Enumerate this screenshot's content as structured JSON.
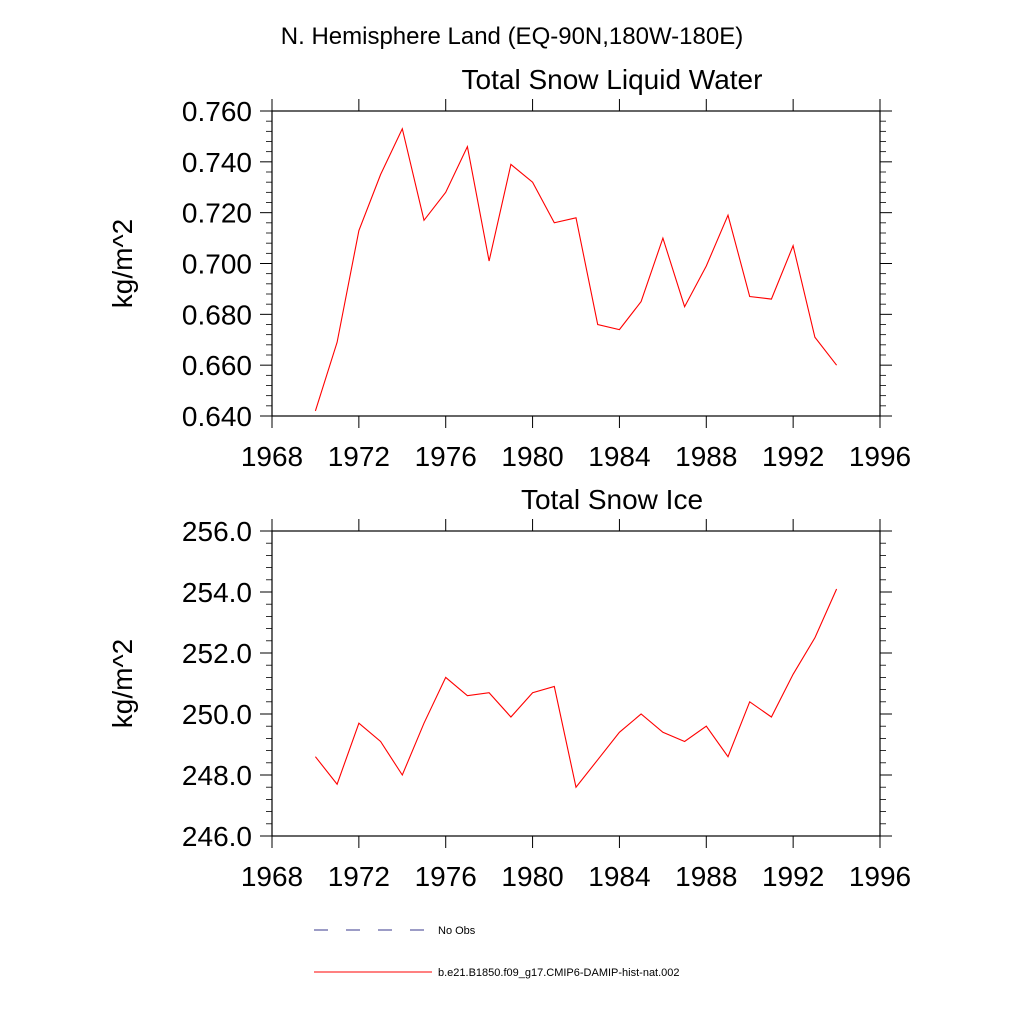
{
  "figure": {
    "title": "N. Hemisphere Land (EQ-90N,180W-180E)"
  },
  "chart_data": [
    {
      "type": "line",
      "title": "Total Snow Liquid Water",
      "xlabel": "",
      "ylabel": "kg/m^2",
      "xlim": [
        1968,
        1996
      ],
      "ylim": [
        0.64,
        0.76
      ],
      "xticks": [
        1968,
        1972,
        1976,
        1980,
        1984,
        1988,
        1992,
        1996
      ],
      "yticks": [
        "0.640",
        "0.660",
        "0.680",
        "0.700",
        "0.720",
        "0.740",
        "0.760"
      ],
      "grid": false,
      "series": [
        {
          "name": "b.e21.B1850.f09_g17.CMIP6-DAMIP-hist-nat.002",
          "color": "#ff0000",
          "x": [
            1970,
            1971,
            1972,
            1973,
            1974,
            1975,
            1976,
            1977,
            1978,
            1979,
            1980,
            1981,
            1982,
            1983,
            1984,
            1985,
            1986,
            1987,
            1988,
            1989,
            1990,
            1991,
            1992,
            1993,
            1994
          ],
          "values": [
            0.642,
            0.669,
            0.713,
            0.735,
            0.753,
            0.717,
            0.728,
            0.746,
            0.701,
            0.739,
            0.732,
            0.716,
            0.718,
            0.676,
            0.674,
            0.685,
            0.71,
            0.683,
            0.699,
            0.719,
            0.687,
            0.686,
            0.707,
            0.671,
            0.66
          ]
        }
      ]
    },
    {
      "type": "line",
      "title": "Total Snow Ice",
      "xlabel": "",
      "ylabel": "kg/m^2",
      "xlim": [
        1968,
        1996
      ],
      "ylim": [
        246.0,
        256.0
      ],
      "xticks": [
        1968,
        1972,
        1976,
        1980,
        1984,
        1988,
        1992,
        1996
      ],
      "yticks": [
        "246.0",
        "248.0",
        "250.0",
        "252.0",
        "254.0",
        "256.0"
      ],
      "grid": false,
      "series": [
        {
          "name": "b.e21.B1850.f09_g17.CMIP6-DAMIP-hist-nat.002",
          "color": "#ff0000",
          "x": [
            1970,
            1971,
            1972,
            1973,
            1974,
            1975,
            1976,
            1977,
            1978,
            1979,
            1980,
            1981,
            1982,
            1983,
            1984,
            1985,
            1986,
            1987,
            1988,
            1989,
            1990,
            1991,
            1992,
            1993,
            1994
          ],
          "values": [
            248.6,
            247.7,
            249.7,
            249.1,
            248.0,
            249.7,
            251.2,
            250.6,
            250.7,
            249.9,
            250.7,
            250.9,
            247.6,
            248.5,
            249.4,
            250.0,
            249.4,
            249.1,
            249.6,
            248.6,
            250.4,
            249.9,
            251.3,
            252.5,
            254.1
          ]
        }
      ]
    }
  ],
  "legend": {
    "placement": "bottom",
    "items": [
      {
        "label": "No Obs",
        "color": "#3a3a8c",
        "style": "dashed"
      },
      {
        "label": "b.e21.B1850.f09_g17.CMIP6-DAMIP-hist-nat.002",
        "color": "#ff0000",
        "style": "solid"
      }
    ]
  }
}
